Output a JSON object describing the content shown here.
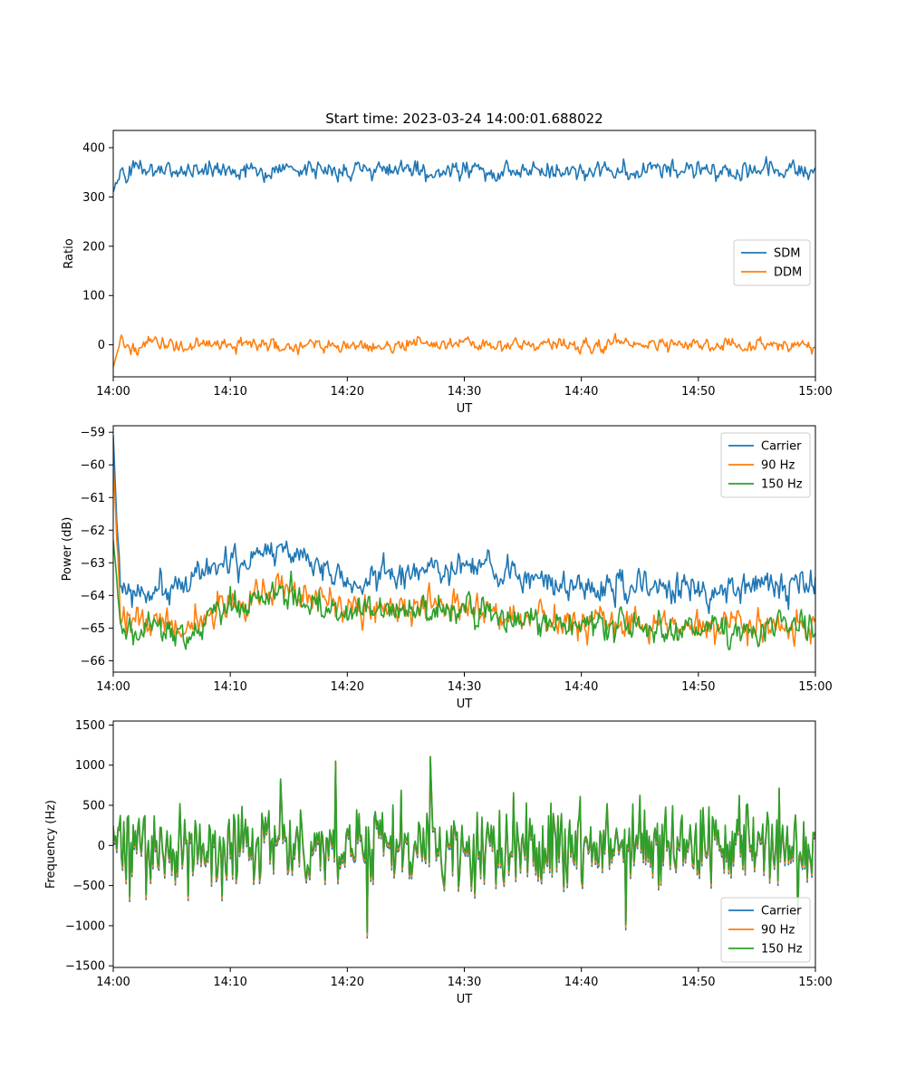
{
  "colors": {
    "blue": "#1f77b4",
    "orange": "#ff7f0e",
    "green": "#2ca02c"
  },
  "chart_data": [
    {
      "type": "line",
      "title": "Start time: 2023-03-24 14:00:01.688022",
      "xlabel": "UT",
      "ylabel": "Ratio",
      "xlim": [
        "14:00",
        "15:00"
      ],
      "ylim": [
        -65,
        435
      ],
      "xticks": [
        "14:00",
        "14:10",
        "14:20",
        "14:30",
        "14:40",
        "14:50",
        "15:00"
      ],
      "yticks": [
        0,
        100,
        200,
        300,
        400
      ],
      "legend": "center-right",
      "grid": false,
      "series": [
        {
          "name": "SDM",
          "color": "#1f77b4",
          "mean": 355,
          "amplitude": 14,
          "start": 310,
          "values_note": ""
        },
        {
          "name": "DDM",
          "color": "#ff7f0e",
          "mean": 0,
          "amplitude": 10,
          "start": -45
        }
      ]
    },
    {
      "type": "line",
      "title": "",
      "xlabel": "UT",
      "ylabel": "Power (dB)",
      "xlim": [
        "14:00",
        "15:00"
      ],
      "ylim": [
        -66.35,
        -58.8
      ],
      "xticks": [
        "14:00",
        "14:10",
        "14:20",
        "14:30",
        "14:40",
        "14:50",
        "15:00"
      ],
      "yticks": [
        -66,
        -65,
        -64,
        -63,
        -62,
        -61,
        -60,
        -59
      ],
      "legend": "top-right",
      "grid": false,
      "series": [
        {
          "name": "Carrier",
          "color": "#1f77b4",
          "trend": [
            [
              0,
              -64.0
            ],
            [
              5,
              -63.8
            ],
            [
              10,
              -62.9
            ],
            [
              15,
              -62.6
            ],
            [
              20,
              -63.6
            ],
            [
              30,
              -63.2
            ],
            [
              40,
              -63.6
            ],
            [
              50,
              -63.8
            ],
            [
              60,
              -63.8
            ]
          ],
          "amplitude": 0.35,
          "start": -59.1
        },
        {
          "name": "90 Hz",
          "color": "#ff7f0e",
          "trend": [
            [
              0,
              -64.6
            ],
            [
              6,
              -65.0
            ],
            [
              10,
              -64.3
            ],
            [
              15,
              -63.7
            ],
            [
              20,
              -64.3
            ],
            [
              30,
              -64.4
            ],
            [
              40,
              -64.9
            ],
            [
              50,
              -65.0
            ],
            [
              60,
              -65.0
            ]
          ],
          "amplitude": 0.35,
          "start": -60.0
        },
        {
          "name": "150 Hz",
          "color": "#2ca02c",
          "trend": [
            [
              0,
              -64.8
            ],
            [
              6,
              -65.2
            ],
            [
              10,
              -64.4
            ],
            [
              15,
              -63.9
            ],
            [
              20,
              -64.5
            ],
            [
              30,
              -64.5
            ],
            [
              40,
              -65.0
            ],
            [
              50,
              -65.0
            ],
            [
              60,
              -65.0
            ]
          ],
          "amplitude": 0.35,
          "start": -62.3
        }
      ]
    },
    {
      "type": "line",
      "title": "",
      "xlabel": "UT",
      "ylabel": "Frequency (Hz)",
      "xlim": [
        "14:00",
        "15:00"
      ],
      "ylim": [
        -1520,
        1550
      ],
      "xticks": [
        "14:00",
        "14:10",
        "14:20",
        "14:30",
        "14:40",
        "14:50",
        "15:00"
      ],
      "yticks": [
        -1500,
        -1000,
        -500,
        0,
        500,
        1000,
        1500
      ],
      "legend": "bottom-right",
      "grid": false,
      "series": [
        {
          "name": "Carrier",
          "color": "#1f77b4",
          "offset": -40,
          "amplitude": 400
        },
        {
          "name": "90 Hz",
          "color": "#ff7f0e",
          "offset": -15,
          "amplitude": 400
        },
        {
          "name": "150 Hz",
          "color": "#2ca02c",
          "offset": 10,
          "amplitude": 400
        }
      ]
    }
  ]
}
